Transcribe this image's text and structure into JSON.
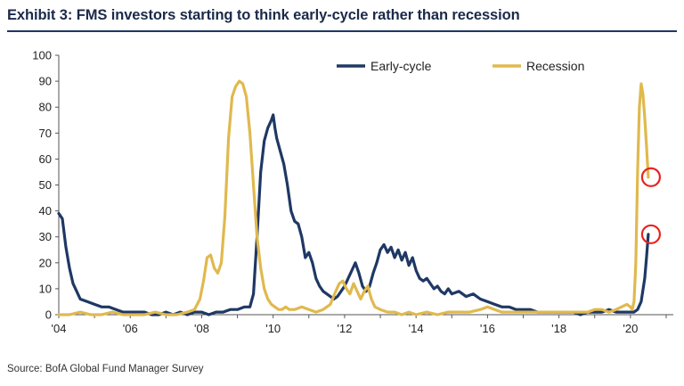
{
  "header": {
    "title": "Exhibit 3: FMS investors starting to think early-cycle rather than recession"
  },
  "footer": {
    "source": "Source: BofA Global Fund Manager Survey"
  },
  "chart_data": {
    "type": "line",
    "title": "Exhibit 3: FMS investors starting to think early-cycle rather than recession",
    "xlabel": "",
    "ylabel": "",
    "xlim": [
      2004,
      2021.2
    ],
    "ylim": [
      0,
      100
    ],
    "y_ticks": [
      0,
      10,
      20,
      30,
      40,
      50,
      60,
      70,
      80,
      90,
      100
    ],
    "x_ticks": [
      2004,
      2006,
      2008,
      2010,
      2012,
      2014,
      2016,
      2018,
      2020
    ],
    "x_tick_labels": [
      "'04",
      "'06",
      "'08",
      "'10",
      "'12",
      "'14",
      "'16",
      "'18",
      "'20"
    ],
    "grid": false,
    "legend_position": "top-right",
    "colors": {
      "early_cycle": "#1f3864",
      "recession": "#e0b94e",
      "highlight": "#e8231f"
    },
    "series": [
      {
        "name": "Early-cycle",
        "points": [
          [
            2004.0,
            39
          ],
          [
            2004.1,
            37
          ],
          [
            2004.2,
            26
          ],
          [
            2004.3,
            18
          ],
          [
            2004.4,
            12
          ],
          [
            2004.5,
            9
          ],
          [
            2004.6,
            6
          ],
          [
            2004.8,
            5
          ],
          [
            2005.0,
            4
          ],
          [
            2005.2,
            3
          ],
          [
            2005.4,
            3
          ],
          [
            2005.6,
            2
          ],
          [
            2005.8,
            1
          ],
          [
            2006.0,
            1
          ],
          [
            2006.2,
            1
          ],
          [
            2006.4,
            1
          ],
          [
            2006.6,
            0
          ],
          [
            2006.8,
            0
          ],
          [
            2007.0,
            1
          ],
          [
            2007.2,
            0
          ],
          [
            2007.4,
            1
          ],
          [
            2007.6,
            0
          ],
          [
            2007.8,
            1
          ],
          [
            2008.0,
            1
          ],
          [
            2008.2,
            0
          ],
          [
            2008.4,
            1
          ],
          [
            2008.6,
            1
          ],
          [
            2008.8,
            2
          ],
          [
            2009.0,
            2
          ],
          [
            2009.2,
            3
          ],
          [
            2009.35,
            3
          ],
          [
            2009.45,
            8
          ],
          [
            2009.55,
            30
          ],
          [
            2009.65,
            55
          ],
          [
            2009.75,
            67
          ],
          [
            2009.85,
            72
          ],
          [
            2009.95,
            75
          ],
          [
            2010.0,
            77
          ],
          [
            2010.05,
            72
          ],
          [
            2010.1,
            68
          ],
          [
            2010.2,
            63
          ],
          [
            2010.3,
            58
          ],
          [
            2010.4,
            50
          ],
          [
            2010.5,
            40
          ],
          [
            2010.6,
            36
          ],
          [
            2010.7,
            35
          ],
          [
            2010.8,
            30
          ],
          [
            2010.9,
            22
          ],
          [
            2011.0,
            24
          ],
          [
            2011.1,
            20
          ],
          [
            2011.2,
            14
          ],
          [
            2011.3,
            11
          ],
          [
            2011.4,
            9
          ],
          [
            2011.5,
            8
          ],
          [
            2011.6,
            7
          ],
          [
            2011.7,
            6
          ],
          [
            2011.8,
            7
          ],
          [
            2011.9,
            9
          ],
          [
            2012.0,
            11
          ],
          [
            2012.1,
            14
          ],
          [
            2012.2,
            17
          ],
          [
            2012.3,
            20
          ],
          [
            2012.4,
            16
          ],
          [
            2012.5,
            11
          ],
          [
            2012.6,
            9
          ],
          [
            2012.7,
            11
          ],
          [
            2012.8,
            16
          ],
          [
            2012.9,
            20
          ],
          [
            2013.0,
            25
          ],
          [
            2013.1,
            27
          ],
          [
            2013.2,
            24
          ],
          [
            2013.3,
            26
          ],
          [
            2013.4,
            22
          ],
          [
            2013.5,
            25
          ],
          [
            2013.6,
            21
          ],
          [
            2013.7,
            24
          ],
          [
            2013.8,
            19
          ],
          [
            2013.9,
            22
          ],
          [
            2014.0,
            17
          ],
          [
            2014.1,
            14
          ],
          [
            2014.2,
            13
          ],
          [
            2014.3,
            14
          ],
          [
            2014.4,
            12
          ],
          [
            2014.5,
            10
          ],
          [
            2014.6,
            11
          ],
          [
            2014.7,
            9
          ],
          [
            2014.8,
            8
          ],
          [
            2014.9,
            10
          ],
          [
            2015.0,
            8
          ],
          [
            2015.2,
            9
          ],
          [
            2015.4,
            7
          ],
          [
            2015.6,
            8
          ],
          [
            2015.8,
            6
          ],
          [
            2016.0,
            5
          ],
          [
            2016.2,
            4
          ],
          [
            2016.4,
            3
          ],
          [
            2016.6,
            3
          ],
          [
            2016.8,
            2
          ],
          [
            2017.0,
            2
          ],
          [
            2017.2,
            2
          ],
          [
            2017.4,
            1
          ],
          [
            2017.6,
            1
          ],
          [
            2017.8,
            1
          ],
          [
            2018.0,
            1
          ],
          [
            2018.2,
            1
          ],
          [
            2018.4,
            1
          ],
          [
            2018.6,
            0
          ],
          [
            2018.8,
            1
          ],
          [
            2019.0,
            1
          ],
          [
            2019.2,
            1
          ],
          [
            2019.4,
            2
          ],
          [
            2019.6,
            1
          ],
          [
            2019.8,
            1
          ],
          [
            2020.0,
            1
          ],
          [
            2020.1,
            1
          ],
          [
            2020.2,
            2
          ],
          [
            2020.3,
            5
          ],
          [
            2020.4,
            14
          ],
          [
            2020.45,
            22
          ],
          [
            2020.5,
            31
          ]
        ]
      },
      {
        "name": "Recession",
        "points": [
          [
            2004.0,
            0
          ],
          [
            2004.3,
            0
          ],
          [
            2004.6,
            1
          ],
          [
            2004.9,
            0
          ],
          [
            2005.2,
            0
          ],
          [
            2005.5,
            1
          ],
          [
            2005.8,
            0
          ],
          [
            2006.1,
            0
          ],
          [
            2006.4,
            0
          ],
          [
            2006.7,
            1
          ],
          [
            2007.0,
            0
          ],
          [
            2007.3,
            0
          ],
          [
            2007.6,
            1
          ],
          [
            2007.8,
            2
          ],
          [
            2007.95,
            6
          ],
          [
            2008.05,
            13
          ],
          [
            2008.15,
            22
          ],
          [
            2008.25,
            23
          ],
          [
            2008.35,
            18
          ],
          [
            2008.45,
            16
          ],
          [
            2008.55,
            20
          ],
          [
            2008.65,
            38
          ],
          [
            2008.75,
            68
          ],
          [
            2008.85,
            84
          ],
          [
            2008.95,
            88
          ],
          [
            2009.05,
            90
          ],
          [
            2009.15,
            89
          ],
          [
            2009.25,
            84
          ],
          [
            2009.35,
            70
          ],
          [
            2009.45,
            50
          ],
          [
            2009.55,
            30
          ],
          [
            2009.65,
            18
          ],
          [
            2009.75,
            10
          ],
          [
            2009.85,
            6
          ],
          [
            2009.95,
            4
          ],
          [
            2010.05,
            3
          ],
          [
            2010.15,
            2
          ],
          [
            2010.25,
            2
          ],
          [
            2010.35,
            3
          ],
          [
            2010.45,
            2
          ],
          [
            2010.6,
            2
          ],
          [
            2010.8,
            3
          ],
          [
            2011.0,
            2
          ],
          [
            2011.2,
            1
          ],
          [
            2011.4,
            2
          ],
          [
            2011.6,
            4
          ],
          [
            2011.75,
            9
          ],
          [
            2011.85,
            12
          ],
          [
            2011.95,
            13
          ],
          [
            2012.05,
            10
          ],
          [
            2012.15,
            8
          ],
          [
            2012.25,
            12
          ],
          [
            2012.35,
            9
          ],
          [
            2012.45,
            6
          ],
          [
            2012.55,
            9
          ],
          [
            2012.65,
            11
          ],
          [
            2012.75,
            6
          ],
          [
            2012.85,
            3
          ],
          [
            2013.0,
            2
          ],
          [
            2013.2,
            1
          ],
          [
            2013.4,
            1
          ],
          [
            2013.6,
            0
          ],
          [
            2013.8,
            1
          ],
          [
            2014.0,
            0
          ],
          [
            2014.3,
            1
          ],
          [
            2014.6,
            0
          ],
          [
            2014.9,
            1
          ],
          [
            2015.2,
            1
          ],
          [
            2015.5,
            1
          ],
          [
            2015.8,
            2
          ],
          [
            2016.0,
            3
          ],
          [
            2016.2,
            2
          ],
          [
            2016.4,
            1
          ],
          [
            2016.7,
            1
          ],
          [
            2017.0,
            1
          ],
          [
            2017.3,
            1
          ],
          [
            2017.6,
            1
          ],
          [
            2017.9,
            1
          ],
          [
            2018.2,
            1
          ],
          [
            2018.5,
            1
          ],
          [
            2018.8,
            1
          ],
          [
            2019.0,
            2
          ],
          [
            2019.2,
            2
          ],
          [
            2019.4,
            1
          ],
          [
            2019.6,
            2
          ],
          [
            2019.75,
            3
          ],
          [
            2019.9,
            4
          ],
          [
            2020.0,
            3
          ],
          [
            2020.05,
            2
          ],
          [
            2020.1,
            5
          ],
          [
            2020.15,
            20
          ],
          [
            2020.2,
            55
          ],
          [
            2020.25,
            80
          ],
          [
            2020.3,
            89
          ],
          [
            2020.35,
            85
          ],
          [
            2020.4,
            76
          ],
          [
            2020.45,
            65
          ],
          [
            2020.5,
            53
          ]
        ]
      }
    ],
    "highlights": [
      {
        "series": "Recession",
        "x": 2020.5,
        "y": 53
      },
      {
        "series": "Early-cycle",
        "x": 2020.5,
        "y": 31
      }
    ]
  }
}
